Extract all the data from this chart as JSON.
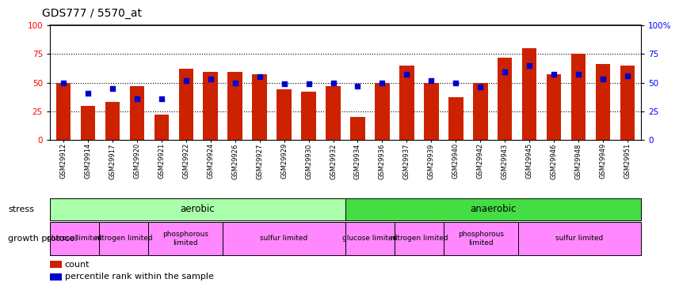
{
  "title": "GDS777 / 5570_at",
  "samples": [
    "GSM29912",
    "GSM29914",
    "GSM29917",
    "GSM29920",
    "GSM29921",
    "GSM29922",
    "GSM29924",
    "GSM29926",
    "GSM29927",
    "GSM29929",
    "GSM29930",
    "GSM29932",
    "GSM29934",
    "GSM29936",
    "GSM29937",
    "GSM29939",
    "GSM29940",
    "GSM29942",
    "GSM29943",
    "GSM29945",
    "GSM29946",
    "GSM29948",
    "GSM29949",
    "GSM29951"
  ],
  "count_values": [
    50,
    30,
    33,
    47,
    22,
    62,
    59,
    59,
    57,
    44,
    42,
    47,
    20,
    50,
    65,
    50,
    37,
    50,
    72,
    80,
    57,
    75,
    66,
    65
  ],
  "percentile_values": [
    50,
    41,
    45,
    36,
    36,
    52,
    53,
    50,
    55,
    49,
    49,
    50,
    47,
    50,
    57,
    52,
    50,
    46,
    59,
    65,
    57,
    57,
    53,
    56
  ],
  "bar_color": "#cc2200",
  "dot_color": "#0000cc",
  "title_color": "#000000",
  "ylim": [
    0,
    100
  ],
  "yticks_left": [
    0,
    25,
    50,
    75,
    100
  ],
  "yticks_right_labels": [
    "0",
    "25",
    "50",
    "75",
    "100%"
  ],
  "grid_lines": [
    25,
    50,
    75
  ],
  "n_aerobic": 12,
  "aerobic_color": "#aaffaa",
  "anaerobic_color": "#44dd44",
  "protocol_groups": [
    {
      "label": "glucose limited",
      "start": 0,
      "end": 2,
      "color": "#ff88ff"
    },
    {
      "label": "nitrogen limited",
      "start": 2,
      "end": 4,
      "color": "#ff88ff"
    },
    {
      "label": "phosphorous\nlimited",
      "start": 4,
      "end": 7,
      "color": "#ff88ff"
    },
    {
      "label": "sulfur limited",
      "start": 7,
      "end": 12,
      "color": "#ff88ff"
    },
    {
      "label": "glucose limited",
      "start": 12,
      "end": 14,
      "color": "#ff88ff"
    },
    {
      "label": "nitrogen limited",
      "start": 14,
      "end": 16,
      "color": "#ff88ff"
    },
    {
      "label": "phosphorous\nlimited",
      "start": 16,
      "end": 19,
      "color": "#ff88ff"
    },
    {
      "label": "sulfur limited",
      "start": 19,
      "end": 24,
      "color": "#ff88ff"
    }
  ],
  "legend_count_label": "count",
  "legend_pct_label": "percentile rank within the sample",
  "stress_label": "stress",
  "protocol_label": "growth protocol"
}
